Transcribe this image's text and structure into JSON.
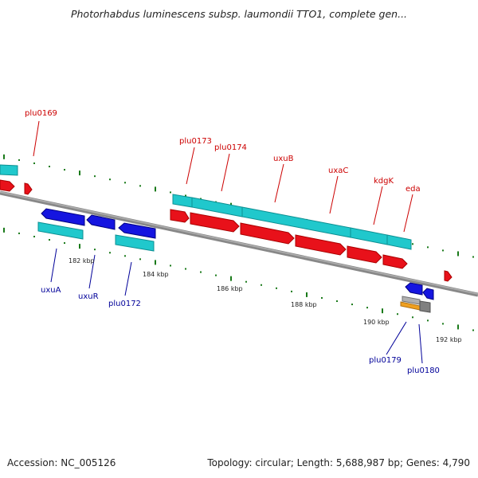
{
  "title": "Photorhabdus luminescens subsp. laumondii TTO1, complete gen...",
  "footer": {
    "accession": "Accession: NC_005126",
    "summary": "Topology: circular; Length: 5,688,987 bp; Genes: 4,790"
  },
  "colors": {
    "forward_gene": "#e8111a",
    "reverse_gene": "#1515e0",
    "cds": "#20c8cc",
    "forward_label": "#cc0000",
    "reverse_label": "#000099",
    "backbone": "#808080",
    "tick_dots": "#1a7a1a"
  },
  "scale": {
    "kbp_ticks": [
      "182 kbp",
      "184 kbp",
      "186 kbp",
      "188 kbp",
      "190 kbp",
      "192 kbp"
    ]
  },
  "forward_labels": [
    "plu0169",
    "plu0173",
    "plu0174",
    "uxuB",
    "uxaC",
    "kdgK",
    "eda"
  ],
  "reverse_labels": [
    "uxuA",
    "uxuR",
    "plu0172",
    "plu0179",
    "plu0180"
  ]
}
